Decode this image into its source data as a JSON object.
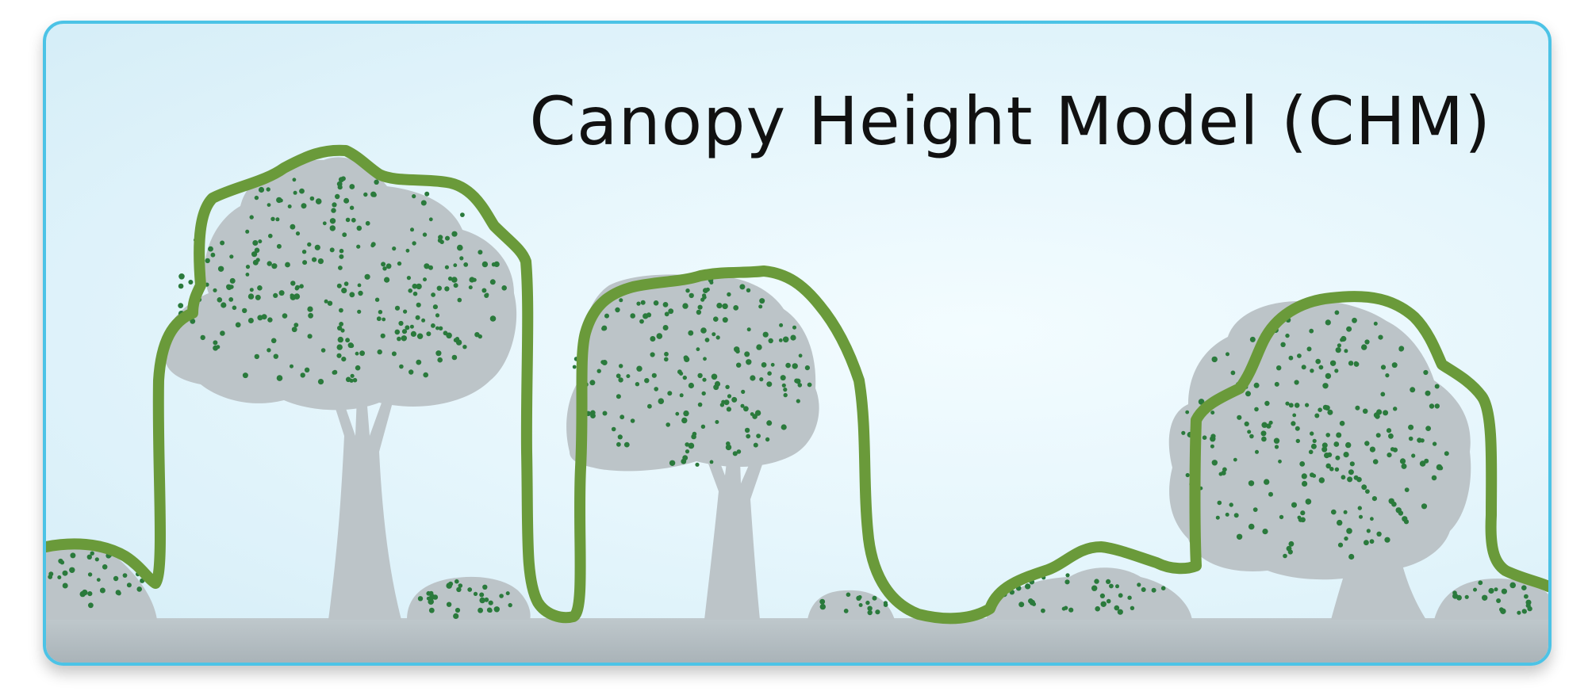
{
  "title": "Canopy Height Model (CHM)",
  "colors": {
    "frame": "#4cc3e6",
    "background": "#e3f4fb",
    "tree_silhouette": "#bcc4c8",
    "leaf_dots": "#2a7a3c",
    "chm_line": "#6a9a3a",
    "ground": "#b8c1c6"
  }
}
